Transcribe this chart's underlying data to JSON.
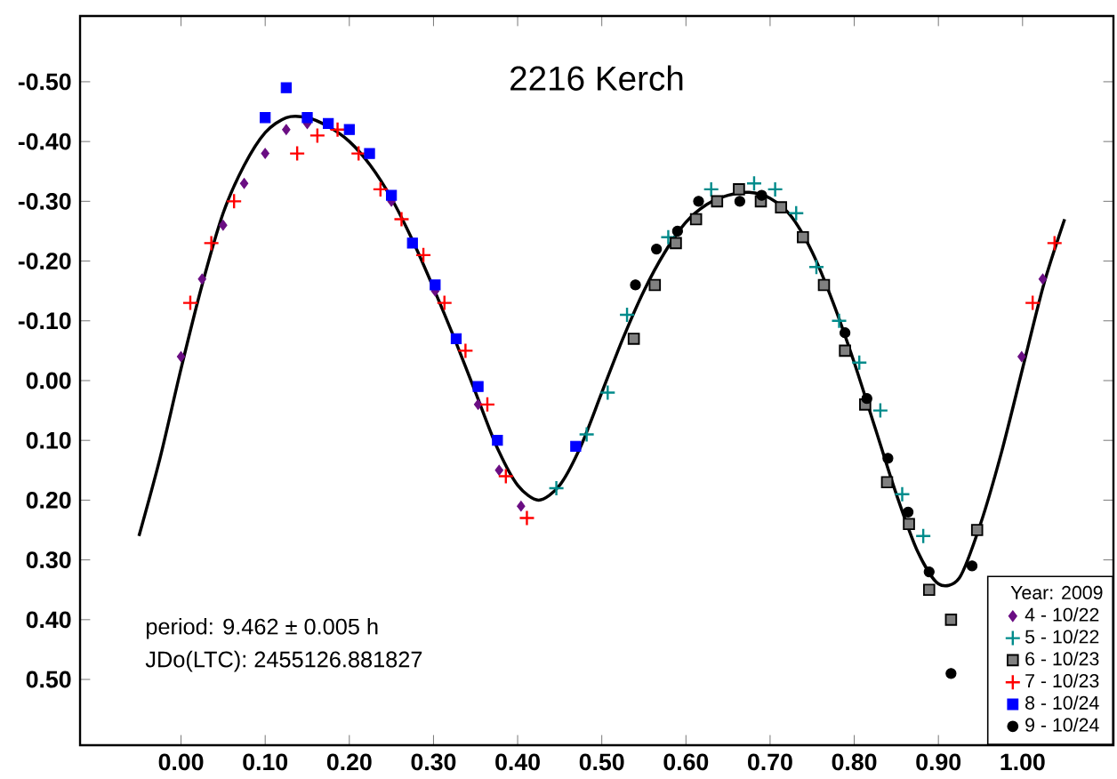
{
  "chart_data": {
    "type": "scatter",
    "title": "2216 Kerch",
    "legend_title": "Year: 2009",
    "annotations": [
      "period: 9.462 ± 0.005 h",
      "JDo(LTC): 2455126.881827"
    ],
    "xlim": [
      -0.12,
      1.108
    ],
    "ylim": [
      0.61,
      -0.61
    ],
    "xticks": [
      {
        "value": 0,
        "label": "0.00"
      },
      {
        "value": 0.1,
        "label": "0.10"
      },
      {
        "value": 0.2,
        "label": "0.20"
      },
      {
        "value": 0.3,
        "label": "0.30"
      },
      {
        "value": 0.4,
        "label": "0.40"
      },
      {
        "value": 0.5,
        "label": "0.50"
      },
      {
        "value": 0.6,
        "label": "0.60"
      },
      {
        "value": 0.7,
        "label": "0.70"
      },
      {
        "value": 0.8,
        "label": "0.80"
      },
      {
        "value": 0.9,
        "label": "0.90"
      },
      {
        "value": 1,
        "label": "1.00"
      }
    ],
    "yticks": [
      {
        "value": -0.5,
        "label": "-0.50"
      },
      {
        "value": -0.4,
        "label": "-0.40"
      },
      {
        "value": -0.3,
        "label": "-0.30"
      },
      {
        "value": -0.2,
        "label": "-0.20"
      },
      {
        "value": -0.1,
        "label": "-0.10"
      },
      {
        "value": 0,
        "label": "0.00"
      },
      {
        "value": 0.1,
        "label": "0.10"
      },
      {
        "value": 0.2,
        "label": "0.20"
      },
      {
        "value": 0.3,
        "label": "0.30"
      },
      {
        "value": 0.4,
        "label": "0.40"
      },
      {
        "value": 0.5,
        "label": "0.50"
      }
    ],
    "grid": false,
    "legend": "bottom right",
    "series": [
      {
        "name": "4 - 10/22",
        "color": "#6a0d83",
        "marker": "diamond",
        "x": [
          0.0,
          0.025,
          0.05,
          0.075,
          0.1,
          0.125,
          0.15,
          0.199,
          0.25,
          0.302,
          0.353,
          0.378,
          0.404,
          0.999,
          1.024
        ],
        "values": [
          -0.04,
          -0.17,
          -0.26,
          -0.33,
          -0.38,
          -0.42,
          -0.43,
          null,
          -0.3,
          -0.15,
          0.04,
          0.15,
          0.21,
          -0.04,
          -0.17
        ]
      },
      {
        "name": "5 - 10/22",
        "color": "#008b8b",
        "marker": "cross",
        "x": [
          0.446,
          0.482,
          0.507,
          0.53,
          0.579,
          0.63,
          0.681,
          0.706,
          0.731,
          0.755,
          0.782,
          0.806,
          0.831,
          0.857,
          0.882
        ],
        "values": [
          0.18,
          0.09,
          0.02,
          -0.11,
          -0.24,
          -0.32,
          -0.33,
          -0.32,
          -0.28,
          -0.19,
          -0.1,
          -0.03,
          0.05,
          0.19,
          0.26
        ]
      },
      {
        "name": "6 - 10/23",
        "color": "#808080",
        "marker": "square",
        "x": [
          0.538,
          0.563,
          0.588,
          0.612,
          0.637,
          0.663,
          0.689,
          0.713,
          0.739,
          0.764,
          0.789,
          0.813,
          0.839,
          0.865,
          0.889,
          0.915,
          0.946
        ],
        "values": [
          -0.07,
          -0.16,
          -0.23,
          -0.27,
          -0.3,
          -0.32,
          -0.3,
          -0.29,
          -0.24,
          -0.16,
          -0.05,
          0.04,
          0.17,
          0.24,
          0.35,
          0.4,
          0.25
        ]
      },
      {
        "name": "7 - 10/23",
        "color": "#ff0000",
        "marker": "cross",
        "x": [
          0.011,
          0.036,
          0.063,
          0.138,
          0.162,
          0.186,
          0.211,
          0.237,
          0.262,
          0.288,
          0.313,
          0.338,
          0.364,
          0.386,
          0.411,
          1.012,
          1.038
        ],
        "values": [
          -0.13,
          -0.23,
          -0.3,
          -0.38,
          -0.41,
          -0.42,
          -0.38,
          -0.32,
          -0.27,
          -0.21,
          -0.13,
          -0.05,
          0.04,
          0.16,
          0.23,
          -0.13,
          -0.23
        ]
      },
      {
        "name": "8 - 10/24",
        "color": "#0000ff",
        "marker": "square",
        "x": [
          0.1,
          0.125,
          0.15,
          0.175,
          0.2,
          0.224,
          0.25,
          0.275,
          0.302,
          0.327,
          0.353,
          0.376,
          0.469
        ],
        "values": [
          -0.44,
          -0.49,
          -0.44,
          -0.43,
          -0.42,
          -0.38,
          -0.31,
          -0.23,
          -0.16,
          -0.07,
          0.01,
          0.1,
          0.11
        ]
      },
      {
        "name": "9 - 10/24",
        "color": "#000000",
        "marker": "circle",
        "x": [
          0.54,
          0.565,
          0.59,
          0.615,
          0.664,
          0.69,
          0.789,
          0.815,
          0.84,
          0.864,
          0.889,
          0.915,
          0.94
        ],
        "values": [
          -0.16,
          -0.22,
          -0.25,
          -0.3,
          -0.3,
          -0.31,
          -0.08,
          0.03,
          0.13,
          0.22,
          0.32,
          0.49,
          0.31
        ]
      },
      {
        "type": "line",
        "color": "#000000",
        "marker": "none",
        "x": [
          -0.05,
          -0.025,
          0.0,
          0.025,
          0.05,
          0.075,
          0.1,
          0.125,
          0.15,
          0.175,
          0.2,
          0.225,
          0.25,
          0.275,
          0.3,
          0.325,
          0.35,
          0.375,
          0.4,
          0.425,
          0.45,
          0.475,
          0.5,
          0.525,
          0.55,
          0.575,
          0.6,
          0.625,
          0.65,
          0.675,
          0.7,
          0.725,
          0.75,
          0.775,
          0.8,
          0.825,
          0.85,
          0.875,
          0.9,
          0.925,
          0.95,
          0.975,
          1.0,
          1.025,
          1.05
        ],
        "values": [
          0.26,
          0.13,
          -0.02,
          -0.16,
          -0.28,
          -0.36,
          -0.415,
          -0.44,
          -0.44,
          -0.425,
          -0.4,
          -0.36,
          -0.305,
          -0.235,
          -0.155,
          -0.07,
          0.02,
          0.11,
          0.175,
          0.2,
          0.175,
          0.11,
          0.02,
          -0.07,
          -0.15,
          -0.215,
          -0.265,
          -0.295,
          -0.31,
          -0.315,
          -0.305,
          -0.275,
          -0.215,
          -0.13,
          -0.03,
          0.08,
          0.19,
          0.285,
          0.34,
          0.33,
          0.24,
          0.12,
          -0.02,
          -0.16,
          -0.27
        ]
      }
    ]
  }
}
